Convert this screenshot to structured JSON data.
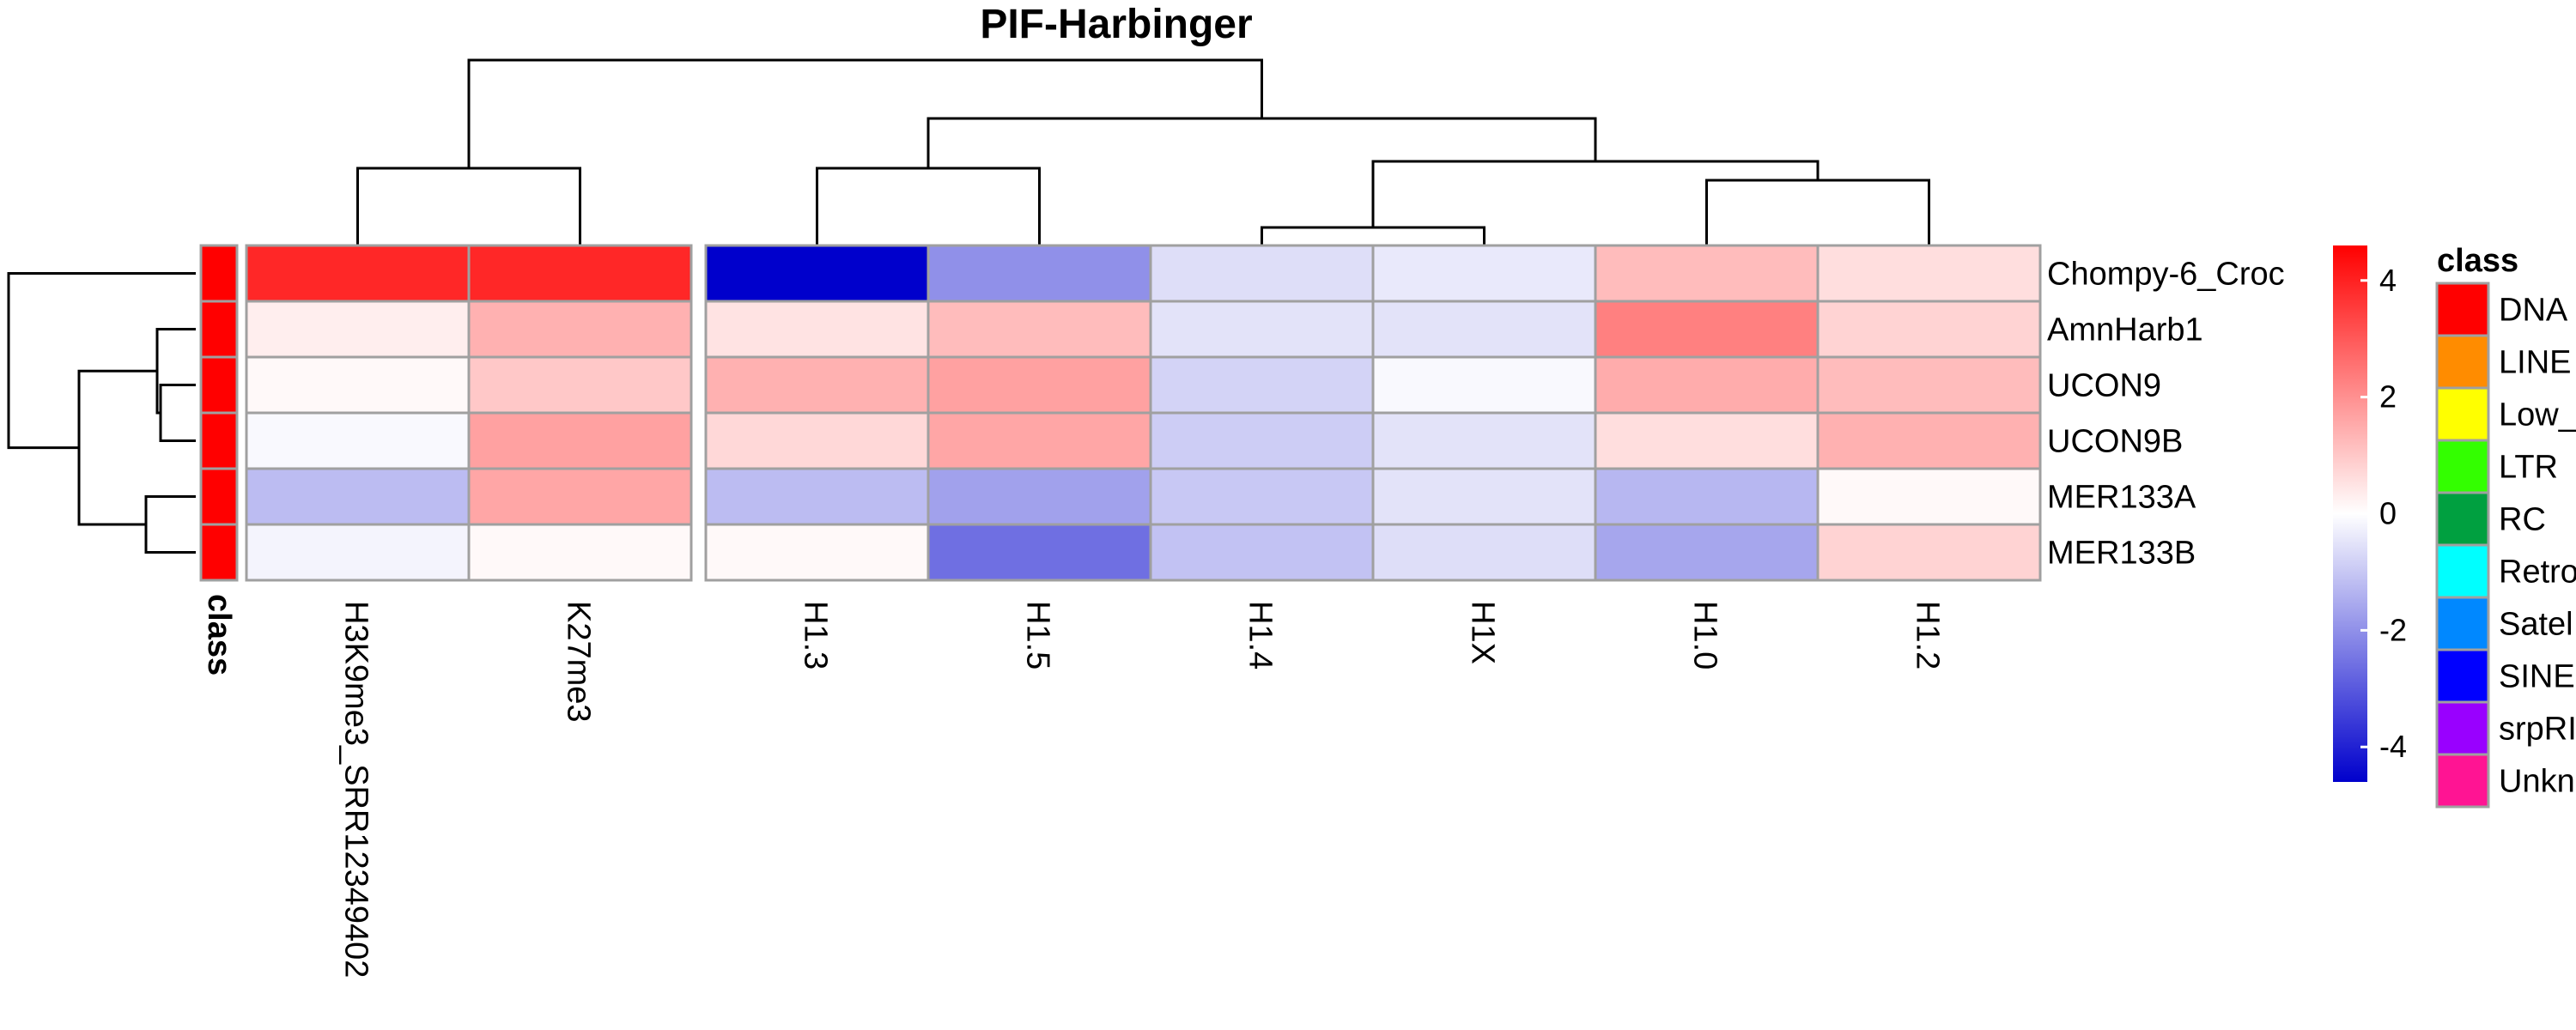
{
  "chart_data": {
    "type": "heatmap",
    "title": "PIF-Harbinger",
    "rows": [
      "Chompy-6_Croc",
      "AmnHarb1",
      "UCON9",
      "UCON9B",
      "MER133A",
      "MER133B"
    ],
    "columns": [
      "H3K9me3_SRR12349402",
      "K27me3",
      "H1.3",
      "H1.5",
      "H1.4",
      "H1X",
      "H1.0",
      "H1.2"
    ],
    "column_split": [
      2,
      6
    ],
    "values": [
      [
        3.9,
        3.9,
        -4.6,
        -2.0,
        -0.6,
        -0.4,
        1.2,
        0.6
      ],
      [
        0.3,
        1.4,
        0.5,
        1.2,
        -0.5,
        -0.5,
        2.3,
        0.8
      ],
      [
        0.1,
        1.0,
        1.4,
        1.7,
        -0.8,
        -0.1,
        1.5,
        1.2
      ],
      [
        -0.1,
        1.7,
        0.7,
        1.6,
        -0.9,
        -0.5,
        0.6,
        1.4
      ],
      [
        -1.2,
        1.6,
        -1.2,
        -1.7,
        -1.0,
        -0.5,
        -1.3,
        0.1
      ],
      [
        -0.2,
        0.1,
        0.1,
        -2.6,
        -1.1,
        -0.6,
        -1.6,
        0.8
      ]
    ],
    "color_scale": {
      "min": -4.6,
      "max": 4.6,
      "colors": [
        "#0000cc",
        "#ffffff",
        "#ff0000"
      ],
      "ticks": [
        "4",
        "2",
        "0",
        "-2",
        "-4"
      ]
    },
    "row_annotation": {
      "label": "class",
      "values": [
        "DNA",
        "DNA",
        "DNA",
        "DNA",
        "DNA",
        "DNA"
      ]
    },
    "legend": {
      "title": "class",
      "items": [
        {
          "label": "DNA",
          "color": "#ff0000"
        },
        {
          "label": "LINE",
          "color": "#ff8c00"
        },
        {
          "label": "Low_",
          "color": "#ffff00"
        },
        {
          "label": "LTR",
          "color": "#33ff00"
        },
        {
          "label": "RC",
          "color": "#00a040"
        },
        {
          "label": "Retro",
          "color": "#00ffff"
        },
        {
          "label": "Satel",
          "color": "#0088ff"
        },
        {
          "label": "SINE",
          "color": "#0000ff"
        },
        {
          "label": "srpRI",
          "color": "#9900ff"
        },
        {
          "label": "Unkn",
          "color": "#ff1493"
        }
      ]
    },
    "grid": false,
    "legend_placement": "right"
  }
}
